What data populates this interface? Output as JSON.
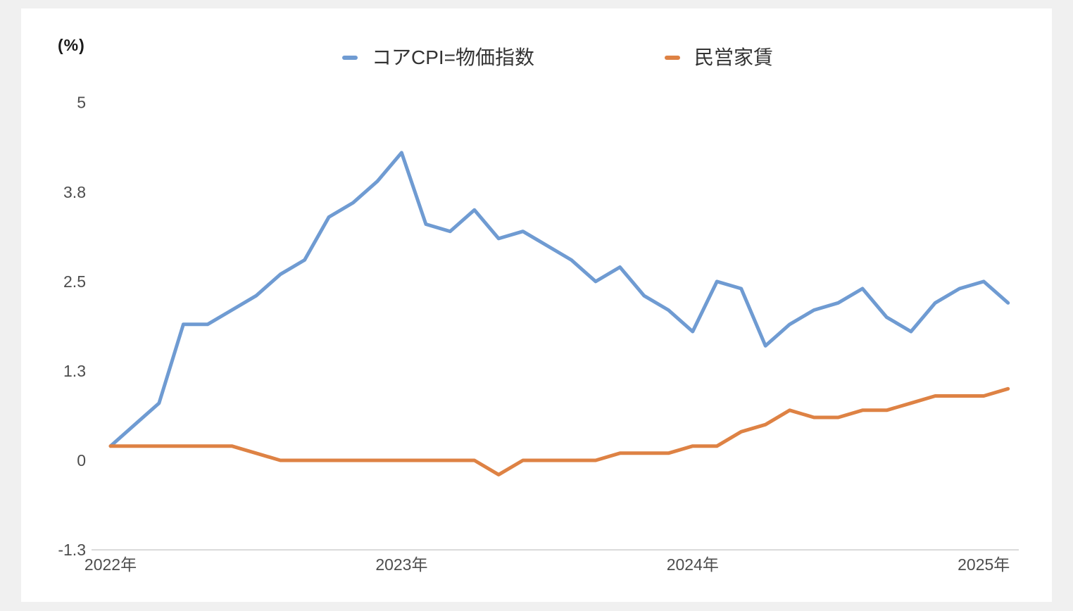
{
  "page": {
    "background_color": "#f0f0f0",
    "card_background_color": "#ffffff"
  },
  "y_axis": {
    "unit_label": "(%)",
    "tick_labels": [
      "5",
      "3.8",
      "2.5",
      "1.3",
      "0",
      "-1.3"
    ]
  },
  "x_axis": {
    "labels": [
      "2022年",
      "2023年",
      "2024年",
      "2025年"
    ]
  },
  "legend": [
    {
      "label": "コアCPI=物価指数",
      "color": "#6F9BD2"
    },
    {
      "label": "民営家賃",
      "color": "#DE8244"
    }
  ],
  "chart_data": {
    "type": "line",
    "title": "",
    "ylabel": "(%)",
    "xlabel": "",
    "grid": false,
    "legend_position": "top",
    "ylim": [
      -1.25,
      5
    ],
    "yticks": {
      "values": [
        5,
        3.75,
        2.5,
        1.25,
        0,
        -1.25
      ],
      "labels": [
        "5",
        "3.8",
        "2.5",
        "1.3",
        "0",
        "-1.3"
      ]
    },
    "xticks": {
      "month_indices": [
        0,
        12,
        24,
        36
      ],
      "labels": [
        "2022年",
        "2023年",
        "2024年",
        "2025年"
      ]
    },
    "x": [
      "2022-01",
      "2022-02",
      "2022-03",
      "2022-04",
      "2022-05",
      "2022-06",
      "2022-07",
      "2022-08",
      "2022-09",
      "2022-10",
      "2022-11",
      "2022-12",
      "2023-01",
      "2023-02",
      "2023-03",
      "2023-04",
      "2023-05",
      "2023-06",
      "2023-07",
      "2023-08",
      "2023-09",
      "2023-10",
      "2023-11",
      "2023-12",
      "2024-01",
      "2024-02",
      "2024-03",
      "2024-04",
      "2024-05",
      "2024-06",
      "2024-07",
      "2024-08",
      "2024-09",
      "2024-10",
      "2024-11",
      "2024-12",
      "2025-01",
      "2025-02"
    ],
    "series": [
      {
        "name": "コアCPI=物価指数",
        "color": "#6F9BD2",
        "values": [
          0.2,
          0.5,
          0.8,
          1.9,
          1.9,
          2.1,
          2.3,
          2.6,
          2.8,
          3.4,
          3.6,
          3.9,
          4.3,
          3.3,
          3.2,
          3.5,
          3.1,
          3.2,
          3.0,
          2.8,
          2.5,
          2.7,
          2.3,
          2.1,
          1.8,
          2.5,
          2.4,
          1.6,
          1.9,
          2.1,
          2.2,
          2.4,
          2.0,
          1.8,
          2.2,
          2.4,
          2.5,
          2.2
        ]
      },
      {
        "name": "民営家賃",
        "color": "#DE8244",
        "values": [
          0.2,
          0.2,
          0.2,
          0.2,
          0.2,
          0.2,
          0.1,
          0.0,
          0.0,
          0.0,
          0.0,
          0.0,
          0.0,
          0.0,
          0.0,
          0.0,
          -0.2,
          0.0,
          0.0,
          0.0,
          0.0,
          0.1,
          0.1,
          0.1,
          0.2,
          0.2,
          0.4,
          0.5,
          0.7,
          0.6,
          0.6,
          0.7,
          0.7,
          0.8,
          0.9,
          0.9,
          0.9,
          1.0
        ]
      }
    ],
    "axis_line_color": "#d9d9d9"
  }
}
